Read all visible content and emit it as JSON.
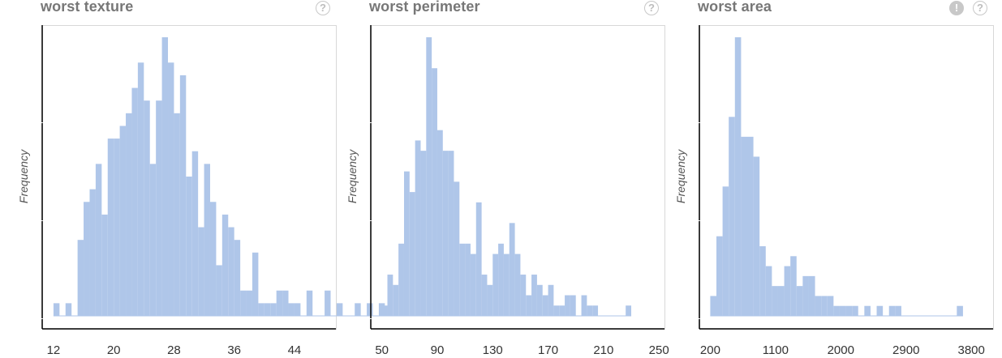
{
  "colors": {
    "bar": "#afc6e9",
    "frame": "#d8d8d8",
    "axis": "#000000",
    "title": "#777777",
    "icon": "#c8c8c8"
  },
  "icons": {
    "help": "question-circle-icon",
    "warning": "exclamation-circle-icon"
  },
  "charts": [
    {
      "title": "worst texture",
      "help_glyph": "?",
      "ylabel": "Frequency"
    },
    {
      "title": "worst perimeter",
      "help_glyph": "?",
      "ylabel": "Frequency"
    },
    {
      "title": "worst area",
      "warn_glyph": "!",
      "help_glyph": "?",
      "ylabel": "Frequency"
    }
  ],
  "chart_data": [
    {
      "type": "bar",
      "title": "worst texture",
      "xlabel": "",
      "ylabel": "Frequency",
      "xlim": [
        10.5,
        49.5
      ],
      "bin_start": 12.0,
      "bin_width": 0.8,
      "tick_values": [
        12,
        20,
        28,
        36,
        44
      ],
      "tick_labels": [
        "12",
        "20",
        "28",
        "36",
        "44"
      ],
      "values": [
        1,
        0,
        1,
        0,
        6,
        9,
        10,
        12,
        8,
        14,
        14,
        15,
        16,
        18,
        20,
        17,
        12,
        17,
        22,
        20,
        16,
        19,
        11,
        13,
        7,
        12,
        9,
        4,
        8,
        7,
        6,
        2,
        2,
        5,
        1,
        1,
        1,
        2,
        2,
        1,
        1,
        0,
        2,
        0,
        0,
        2,
        0,
        1,
        0,
        0,
        1,
        0,
        1,
        0,
        1
      ],
      "grid": false,
      "legend": "none"
    },
    {
      "type": "bar",
      "title": "worst perimeter",
      "xlabel": "",
      "ylabel": "Frequency",
      "xlim": [
        42,
        254
      ],
      "bin_start": 50.0,
      "bin_width": 4.0,
      "tick_values": [
        50,
        90,
        130,
        170,
        210,
        250
      ],
      "tick_labels": [
        "50",
        "90",
        "130",
        "170",
        "210",
        "250"
      ],
      "values": [
        1,
        4,
        3,
        7,
        14,
        12,
        17,
        16,
        27,
        24,
        18,
        16,
        16,
        13,
        7,
        7,
        6,
        11,
        4,
        3,
        6,
        7,
        6,
        9,
        6,
        4,
        2,
        4,
        3,
        2,
        3,
        1,
        1,
        2,
        2,
        0,
        2,
        1,
        1,
        0,
        0,
        0,
        0,
        0,
        1
      ],
      "grid": false,
      "legend": "none"
    },
    {
      "type": "bar",
      "title": "worst area",
      "xlabel": "",
      "ylabel": "Frequency",
      "xlim": [
        50,
        4100
      ],
      "bin_start": 200.0,
      "bin_width": 85.0,
      "tick_values": [
        200,
        1100,
        2000,
        2900,
        3800
      ],
      "tick_labels": [
        "200",
        "1100",
        "2000",
        "2900",
        "3800"
      ],
      "values": [
        2,
        8,
        13,
        20,
        28,
        18,
        18,
        16,
        7,
        5,
        3,
        3,
        5,
        6,
        3,
        4,
        4,
        2,
        2,
        2,
        1,
        1,
        1,
        1,
        0,
        1,
        0,
        1,
        0,
        1,
        1,
        0,
        0,
        0,
        0,
        0,
        0,
        0,
        0,
        0,
        1
      ],
      "grid": false,
      "legend": "none"
    }
  ]
}
